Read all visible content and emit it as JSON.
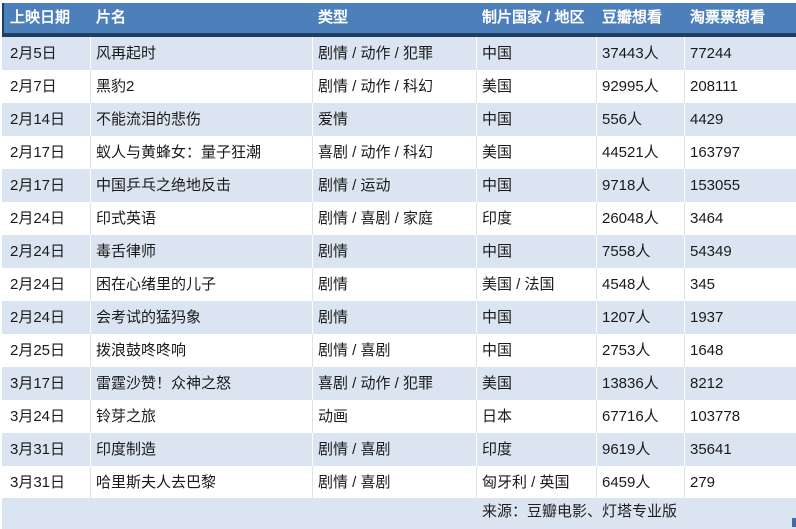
{
  "table": {
    "columns": [
      "上映日期",
      "片名",
      "类型",
      "制片国家 / 地区",
      "豆瓣想看",
      "淘票票想看"
    ],
    "rows": [
      {
        "date": "2月5日",
        "title": "风再起时",
        "genre": "剧情 / 动作 / 犯罪",
        "country": "中国",
        "douban": "37443人",
        "taopiaopiao": "77244"
      },
      {
        "date": "2月7日",
        "title": "黑豹2",
        "genre": "剧情 / 动作 / 科幻",
        "country": "美国",
        "douban": "92995人",
        "taopiaopiao": "208111"
      },
      {
        "date": "2月14日",
        "title": "不能流泪的悲伤",
        "genre": "爱情",
        "country": "中国",
        "douban": "556人",
        "taopiaopiao": "4429"
      },
      {
        "date": "2月17日",
        "title": "蚁人与黄蜂女：量子狂潮",
        "genre": "喜剧 / 动作 / 科幻",
        "country": "美国",
        "douban": "44521人",
        "taopiaopiao": "163797"
      },
      {
        "date": "2月17日",
        "title": "中国乒乓之绝地反击",
        "genre": "剧情 / 运动",
        "country": "中国",
        "douban": "9718人",
        "taopiaopiao": "153055"
      },
      {
        "date": "2月24日",
        "title": "印式英语",
        "genre": "剧情 / 喜剧 / 家庭",
        "country": "印度",
        "douban": "26048人",
        "taopiaopiao": "3464"
      },
      {
        "date": "2月24日",
        "title": "毒舌律师",
        "genre": "剧情",
        "country": "中国",
        "douban": "7558人",
        "taopiaopiao": "54349"
      },
      {
        "date": "2月24日",
        "title": "困在心绪里的儿子",
        "genre": "剧情",
        "country": "美国 / 法国",
        "douban": "4548人",
        "taopiaopiao": "345"
      },
      {
        "date": "2月24日",
        "title": "会考试的猛犸象",
        "genre": "剧情",
        "country": "中国",
        "douban": "1207人",
        "taopiaopiao": "1937"
      },
      {
        "date": "2月25日",
        "title": "拨浪鼓咚咚响",
        "genre": "剧情 / 喜剧",
        "country": "中国",
        "douban": "2753人",
        "taopiaopiao": "1648"
      },
      {
        "date": "3月17日",
        "title": "雷霆沙赞！众神之怒",
        "genre": "喜剧 / 动作 / 犯罪",
        "country": "美国",
        "douban": "13836人",
        "taopiaopiao": "8212"
      },
      {
        "date": "3月24日",
        "title": "铃芽之旅",
        "genre": "动画",
        "country": "日本",
        "douban": "67716人",
        "taopiaopiao": "103778"
      },
      {
        "date": "3月31日",
        "title": "印度制造",
        "genre": "剧情 / 喜剧",
        "country": "印度",
        "douban": "9619人",
        "taopiaopiao": "35641"
      },
      {
        "date": "3月31日",
        "title": "哈里斯夫人去巴黎",
        "genre": "剧情 / 喜剧",
        "country": "匈牙利 / 英国",
        "douban": "6459人",
        "taopiaopiao": "279"
      }
    ]
  },
  "footer": {
    "source": "来源：豆瓣电影、灯塔专业版"
  },
  "colors": {
    "header_bg": "#4d7fba",
    "header_text": "#ffffff",
    "stripe": "#dbe5f1",
    "border_dark": "#1c3f63",
    "accent_mark": "#3f6ca8",
    "body_text": "#1a1a1a"
  }
}
